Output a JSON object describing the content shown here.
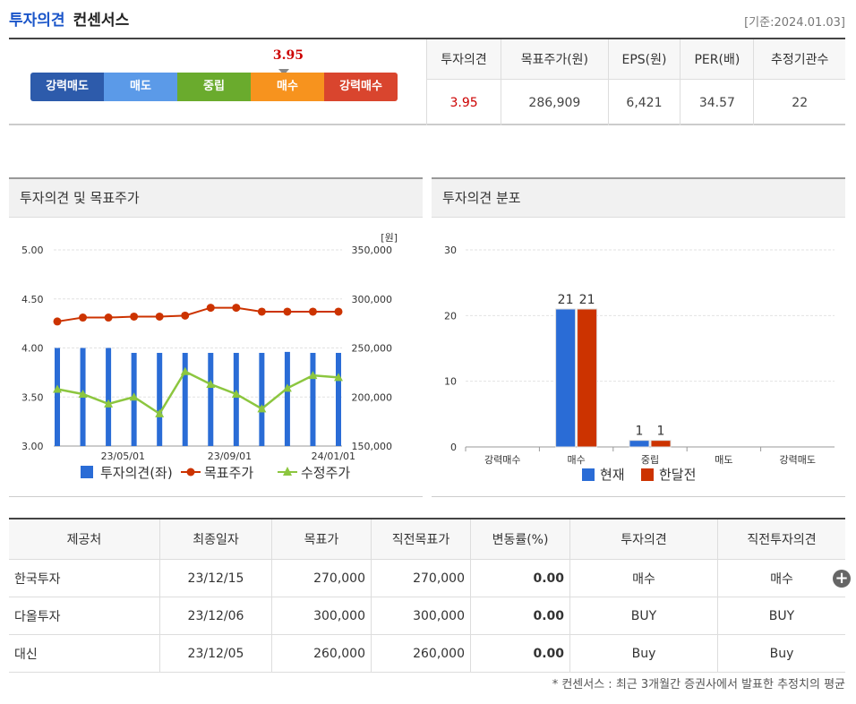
{
  "header": {
    "title_a": "투자의견",
    "title_b": "컨센서스",
    "date": "[기준:2024.01.03]"
  },
  "gauge": {
    "value": "3.95",
    "score": 3.95,
    "segments": [
      "강력매도",
      "매도",
      "중립",
      "매수",
      "강력매수"
    ]
  },
  "summary": {
    "headers": [
      "투자의견",
      "목표주가(원)",
      "EPS(원)",
      "PER(배)",
      "추정기관수"
    ],
    "values": [
      "3.95",
      "286,909",
      "6,421",
      "34.57",
      "22"
    ]
  },
  "panel_left": {
    "title": "투자의견 및 목표주가"
  },
  "panel_right": {
    "title": "투자의견 분포"
  },
  "colors": {
    "bar_blue": "#2a6cd6",
    "line_red": "#cc3300",
    "line_green": "#8cc63f",
    "accent_blue": "#1a55c9"
  },
  "chart_data": [
    {
      "type": "bar",
      "title": "투자의견 및 목표주가",
      "ylabel": "",
      "y2label": "[원]",
      "ylim": [
        3.0,
        5.0
      ],
      "y2lim": [
        150000,
        350000
      ],
      "yticks": [
        "5.00",
        "4.50",
        "4.00",
        "3.50",
        "3.00"
      ],
      "y2ticks": [
        "350,000",
        "300,000",
        "250,000",
        "200,000",
        "150,000"
      ],
      "xticks": [
        "23/05/01",
        "23/09/01",
        "24/01/01"
      ],
      "legend": [
        "투자의견(좌)",
        "목표주가",
        "수정주가"
      ],
      "series": [
        {
          "name": "투자의견(좌)",
          "values": [
            4.0,
            4.0,
            4.0,
            3.95,
            3.95,
            3.95,
            3.95,
            3.95,
            3.95,
            3.96,
            3.95,
            3.95
          ]
        },
        {
          "name": "목표주가",
          "values": [
            277000,
            281000,
            281000,
            282000,
            282000,
            283000,
            291000,
            291000,
            287000,
            287000,
            287000,
            287000
          ]
        },
        {
          "name": "수정주가",
          "values": [
            208000,
            203000,
            193000,
            200000,
            183000,
            226000,
            213000,
            203000,
            188000,
            209000,
            222000,
            220000
          ]
        }
      ]
    },
    {
      "type": "bar",
      "title": "투자의견 분포",
      "categories": [
        "강력매수",
        "매수",
        "중립",
        "매도",
        "강력매도"
      ],
      "ylim": [
        0,
        30
      ],
      "yticks": [
        "30",
        "20",
        "10",
        "0"
      ],
      "legend": [
        "현재",
        "한달전"
      ],
      "series": [
        {
          "name": "현재",
          "values": [
            0,
            21,
            1,
            0,
            0
          ]
        },
        {
          "name": "한달전",
          "values": [
            0,
            21,
            1,
            0,
            0
          ]
        }
      ]
    }
  ],
  "brokers": {
    "headers": [
      "제공처",
      "최종일자",
      "목표가",
      "직전목표가",
      "변동률(%)",
      "투자의견",
      "직전투자의견"
    ],
    "rows": [
      [
        "한국투자",
        "23/12/15",
        "270,000",
        "270,000",
        "0.00",
        "매수",
        "매수"
      ],
      [
        "다올투자",
        "23/12/06",
        "300,000",
        "300,000",
        "0.00",
        "BUY",
        "BUY"
      ],
      [
        "대신",
        "23/12/05",
        "260,000",
        "260,000",
        "0.00",
        "Buy",
        "Buy"
      ]
    ]
  },
  "footnote": "* 컨센서스 : 최근 3개월간 증권사에서 발표한 추정치의 평균"
}
